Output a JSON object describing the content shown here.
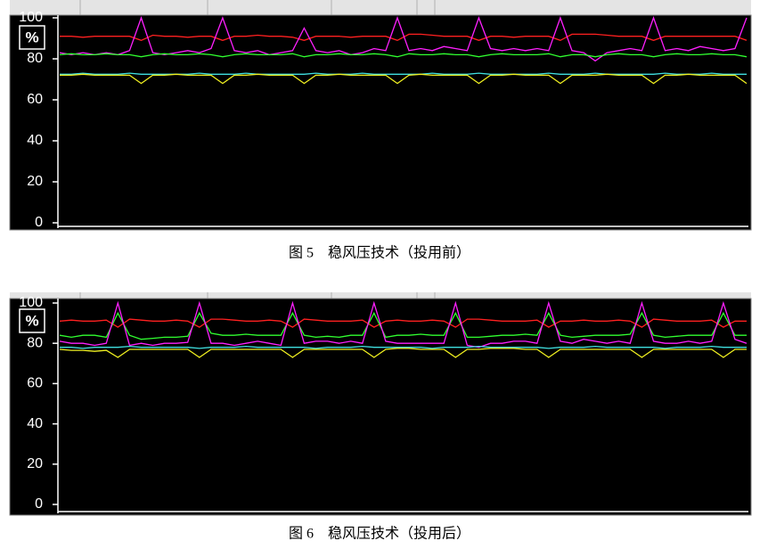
{
  "chart_data": [
    {
      "type": "line",
      "caption": "图 5　稳风压技术（投用前）",
      "unit_label": "%",
      "ylim": [
        0,
        100
      ],
      "yticks": [
        0,
        20,
        40,
        60,
        80,
        100
      ],
      "series": [
        {
          "color": "#ff2020",
          "values": [
            91,
            91,
            90.5,
            91,
            91,
            91,
            91,
            89,
            91.5,
            91,
            91,
            90.5,
            91,
            91,
            89,
            91,
            91,
            91.5,
            91,
            91,
            90.5,
            89,
            91,
            91,
            91,
            90.5,
            91,
            91,
            91,
            89,
            92,
            92,
            91.5,
            91,
            91,
            91,
            89,
            91,
            91,
            90.5,
            91,
            91,
            91,
            89,
            92,
            92,
            92,
            91.5,
            91,
            91,
            91,
            89,
            91,
            91,
            91,
            91,
            91,
            91,
            91,
            89
          ]
        },
        {
          "color": "#ff20ff",
          "values": [
            83,
            82,
            83,
            82,
            83,
            82,
            84,
            100,
            83,
            82,
            83,
            84,
            83,
            85,
            100,
            84,
            83,
            84,
            82,
            83,
            84,
            95,
            84,
            83,
            84,
            82,
            83,
            85,
            84,
            100,
            84,
            85,
            84,
            86,
            85,
            84,
            100,
            85,
            84,
            85,
            84,
            85,
            84,
            100,
            84,
            83,
            79,
            83,
            84,
            85,
            84,
            100,
            84,
            85,
            84,
            86,
            85,
            84,
            85,
            100
          ]
        },
        {
          "color": "#30ff30",
          "values": [
            82,
            82.5,
            82,
            82,
            82.5,
            82,
            82,
            81,
            82,
            82.5,
            82,
            82,
            82.5,
            82,
            81,
            82,
            82.5,
            82,
            82,
            82,
            82.5,
            81,
            82,
            82,
            82.5,
            82,
            82,
            82.5,
            82,
            81,
            82.5,
            82,
            82,
            82.5,
            82,
            82,
            81,
            82,
            82.5,
            82,
            82,
            82,
            82.5,
            81,
            82,
            82,
            81,
            82,
            82.5,
            82,
            82,
            81,
            82,
            82.5,
            82,
            82,
            82.5,
            82,
            82,
            81
          ]
        },
        {
          "color": "#40e0e0",
          "values": [
            72.5,
            72.5,
            73,
            72.5,
            72.5,
            72.5,
            73,
            72.5,
            72.5,
            72.5,
            72.5,
            72.5,
            73,
            72.5,
            72.5,
            72.5,
            73,
            72.5,
            72.5,
            72.5,
            72.5,
            72.5,
            73,
            72.5,
            72.5,
            72.5,
            73,
            72.5,
            72.5,
            72.5,
            72.5,
            72.5,
            73,
            72.5,
            72.5,
            72.5,
            73,
            72.5,
            72.5,
            72.5,
            72.5,
            72.5,
            73,
            72.5,
            72.5,
            72.5,
            73,
            72.5,
            72.5,
            72.5,
            72.5,
            72.5,
            73,
            72.5,
            72.5,
            72.5,
            73,
            72.5,
            72.5,
            72.5
          ]
        },
        {
          "color": "#f0f020",
          "values": [
            72,
            72,
            72.5,
            72,
            72,
            72,
            72,
            68,
            72,
            72,
            72.5,
            72,
            72,
            72,
            68,
            72,
            72,
            72.5,
            72,
            72,
            72,
            68,
            72,
            72,
            72.5,
            72,
            72,
            72,
            72,
            68,
            72,
            72.5,
            72,
            72,
            72,
            72,
            68,
            72,
            72,
            72.5,
            72,
            72,
            72,
            68,
            72,
            72,
            72,
            72.5,
            72,
            72,
            72,
            68,
            72,
            72,
            72.5,
            72,
            72,
            72,
            72,
            68
          ]
        }
      ]
    },
    {
      "type": "line",
      "caption": "图 6　稳风压技术（投用后）",
      "unit_label": "%",
      "ylim": [
        0,
        100
      ],
      "yticks": [
        0,
        20,
        40,
        60,
        80,
        100
      ],
      "series": [
        {
          "color": "#ff2020",
          "values": [
            91,
            91.5,
            91,
            91,
            91.5,
            88,
            92,
            91.5,
            91,
            91,
            91.5,
            91,
            88,
            92,
            92,
            91.5,
            91,
            91,
            91.5,
            91,
            88,
            92,
            91.5,
            91,
            91,
            91,
            91.5,
            88,
            91,
            91.5,
            91,
            91,
            91.5,
            91,
            88,
            92,
            92,
            91.5,
            91,
            91,
            91,
            91.5,
            88,
            91,
            91,
            91.5,
            91,
            91,
            91.5,
            91,
            88,
            92,
            91.5,
            91,
            91,
            91,
            91.5,
            88,
            91,
            91
          ]
        },
        {
          "color": "#30ff30",
          "values": [
            84,
            83,
            84,
            84,
            83,
            95,
            84,
            82,
            82.5,
            83,
            83,
            83.5,
            95,
            85,
            84,
            84,
            84.5,
            84,
            84,
            84,
            95,
            84,
            83,
            83.5,
            83,
            84,
            84,
            95,
            83,
            84,
            84,
            84.5,
            84,
            84,
            95,
            83,
            83,
            83.5,
            84,
            84,
            84.5,
            84,
            95,
            84,
            83,
            83.5,
            84,
            84,
            84,
            84.5,
            95,
            84,
            83,
            83.5,
            84,
            84,
            84,
            95,
            84,
            84
          ]
        },
        {
          "color": "#ff20ff",
          "values": [
            81,
            80,
            80,
            79,
            80,
            100,
            79,
            80,
            79,
            80,
            80,
            80.5,
            100,
            80,
            80,
            79,
            80,
            81,
            80,
            79,
            100,
            80,
            81,
            81,
            80,
            81,
            80,
            100,
            81,
            80,
            80,
            80,
            80,
            80,
            100,
            79,
            78,
            80,
            80,
            81,
            81,
            80,
            100,
            81,
            80,
            82,
            81,
            80,
            81,
            80,
            100,
            81,
            80,
            80,
            81,
            80,
            81,
            100,
            82,
            80
          ]
        },
        {
          "color": "#40e0e0",
          "values": [
            78,
            78,
            77.5,
            78,
            78,
            78,
            78.5,
            78,
            78,
            78,
            78,
            78,
            77.5,
            78,
            78,
            78,
            78.5,
            78,
            78,
            78,
            78,
            78,
            77.5,
            78,
            78,
            78,
            78.5,
            78,
            78,
            78,
            78,
            78,
            77.5,
            78,
            78,
            78,
            78.5,
            78,
            78,
            78,
            78,
            78,
            77.5,
            78,
            78,
            78,
            78.5,
            78,
            78,
            78,
            78,
            78,
            77.5,
            78,
            78,
            78,
            78.5,
            78,
            78,
            78
          ]
        },
        {
          "color": "#f0f020",
          "values": [
            77,
            76.5,
            76.5,
            76,
            76.5,
            73,
            77,
            77,
            77,
            77,
            77,
            77,
            73,
            77,
            77,
            77,
            77,
            77,
            77,
            77,
            73,
            77,
            77,
            77,
            77,
            77,
            77,
            73,
            77,
            77.5,
            77.5,
            77,
            77,
            77,
            73,
            77,
            77,
            77.5,
            77.5,
            77.5,
            77,
            77,
            73,
            77,
            77,
            77,
            77,
            77,
            77,
            77,
            73,
            77,
            77,
            77,
            77,
            77,
            77,
            73,
            77,
            77
          ]
        }
      ]
    }
  ]
}
